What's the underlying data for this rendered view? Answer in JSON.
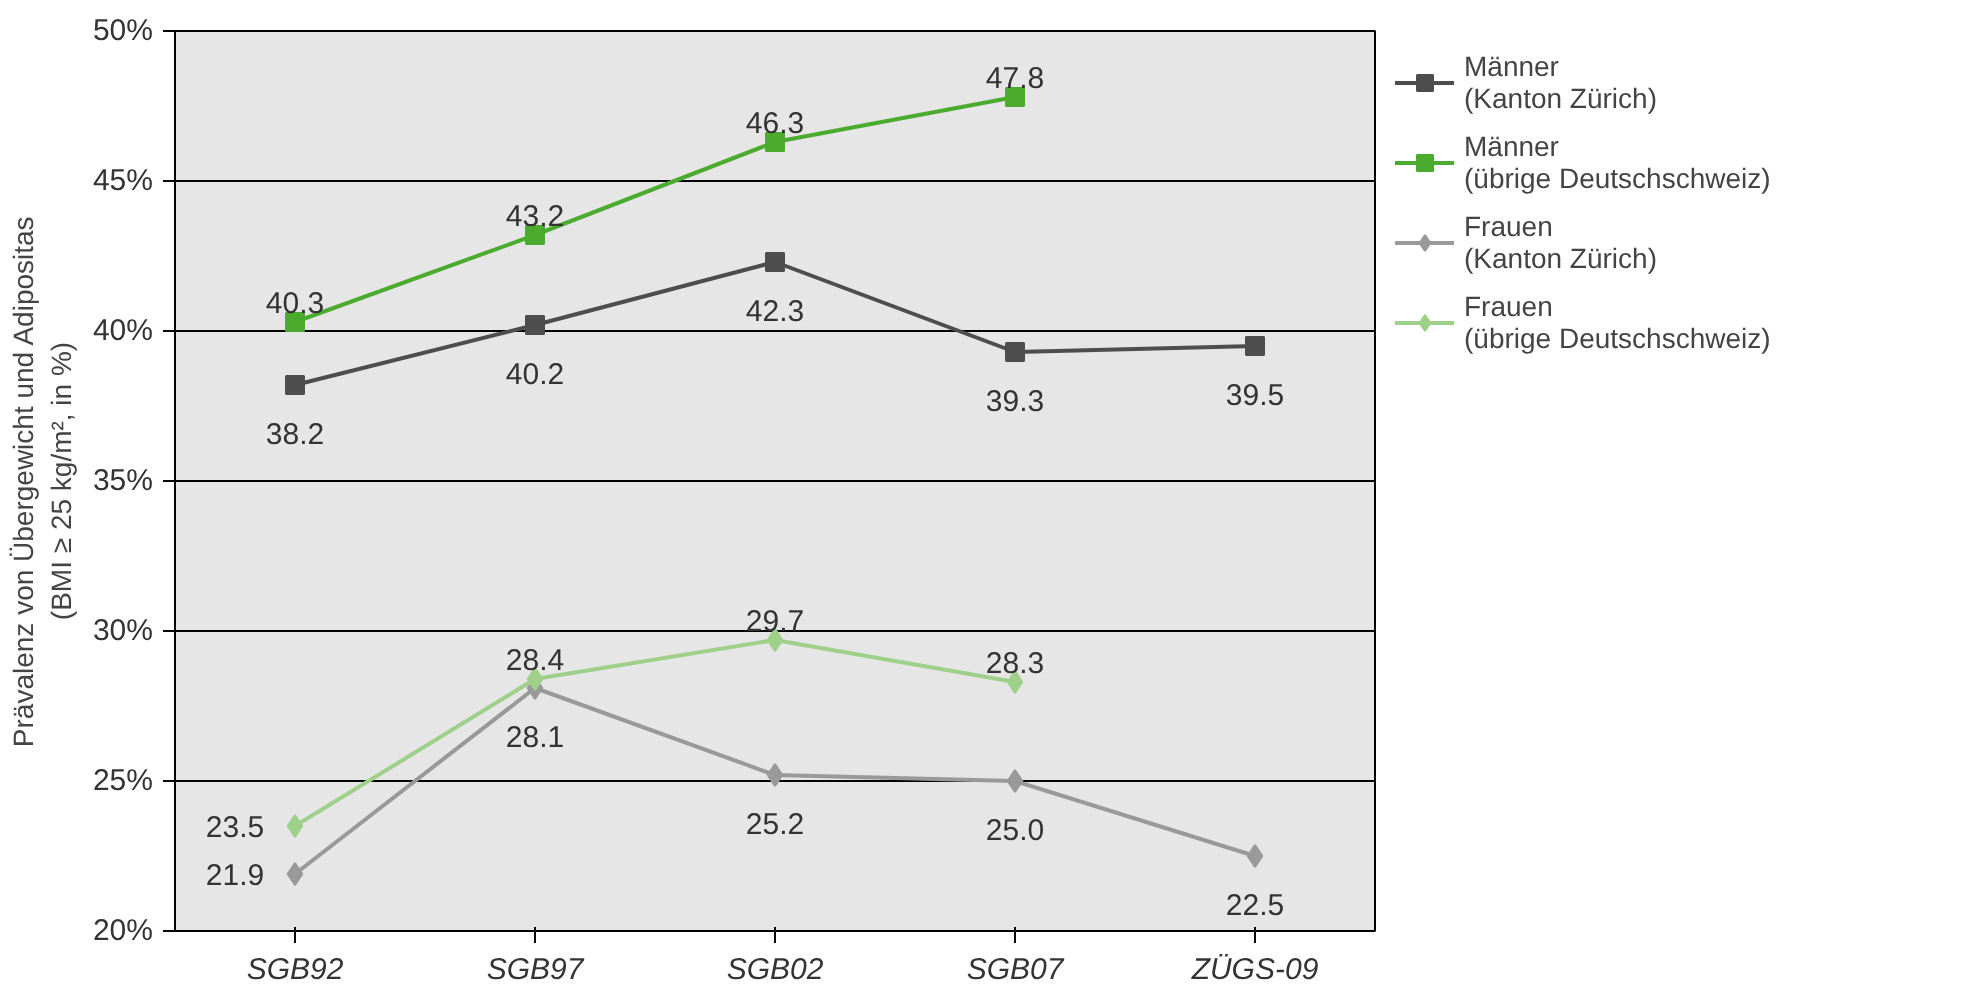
{
  "chart_data": {
    "type": "line",
    "ylabel": "Prävalenz von Übergewicht und Adipositas\n(BMI ≥ 25 kg/m², in %)",
    "categories": [
      "SGB92",
      "SGB97",
      "SGB02",
      "SGB07",
      "ZÜGS-09"
    ],
    "ylim": [
      20,
      50
    ],
    "yticks": [
      {
        "value": 20,
        "label": "20%"
      },
      {
        "value": 25,
        "label": "25%"
      },
      {
        "value": 30,
        "label": "30%"
      },
      {
        "value": 35,
        "label": "35%"
      },
      {
        "value": 40,
        "label": "40%"
      },
      {
        "value": 45,
        "label": "45%"
      },
      {
        "value": 50,
        "label": "50%"
      }
    ],
    "grid": "y",
    "legend": "right",
    "series": [
      {
        "name": "Männer\n(Kanton Zürich)",
        "color": "#4d4d4d",
        "marker": "square",
        "values": [
          38.2,
          40.2,
          42.3,
          39.3,
          39.5
        ],
        "value_labels": [
          "38.2",
          "40.2",
          "42.3",
          "39.3",
          "39.5"
        ]
      },
      {
        "name": "Männer\n(übrige Deutschschweiz)",
        "color": "#4aab2f",
        "marker": "square",
        "values": [
          40.3,
          43.2,
          46.3,
          47.8,
          null
        ],
        "value_labels": [
          "40.3",
          "43.2",
          "46.3",
          "47.8",
          null
        ]
      },
      {
        "name": "Frauen\n(Kanton Zürich)",
        "color": "#999999",
        "marker": "diamond",
        "values": [
          21.9,
          28.1,
          25.2,
          25.0,
          22.5
        ],
        "value_labels": [
          "21.9",
          "28.1",
          "25.2",
          "25.0",
          "22.5"
        ]
      },
      {
        "name": "Frauen\n(übrige Deutschschweiz)",
        "color": "#9fd08a",
        "marker": "diamond",
        "values": [
          23.5,
          28.4,
          29.7,
          28.3,
          null
        ],
        "value_labels": [
          "23.5",
          "28.4",
          "29.7",
          "28.3",
          null
        ]
      }
    ]
  }
}
